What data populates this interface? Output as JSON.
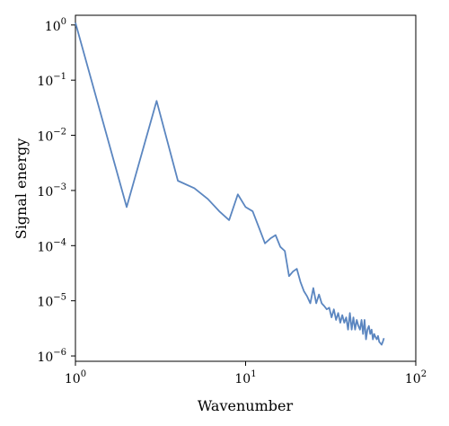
{
  "chart_data": {
    "type": "line",
    "xlabel": "Wavenumber",
    "ylabel": "Signal energy",
    "xscale": "log",
    "yscale": "log",
    "xlim": [
      1,
      100
    ],
    "ylim": [
      8e-07,
      1.5
    ],
    "x_ticks": [
      {
        "base": "10",
        "exp": "0",
        "value": 1
      },
      {
        "base": "10",
        "exp": "1",
        "value": 10
      },
      {
        "base": "10",
        "exp": "2",
        "value": 100
      }
    ],
    "y_ticks": [
      {
        "base": "10",
        "exp": "0",
        "value": 1
      },
      {
        "base": "10",
        "exp": "−1",
        "value": 0.1
      },
      {
        "base": "10",
        "exp": "−2",
        "value": 0.01
      },
      {
        "base": "10",
        "exp": "−3",
        "value": 0.001
      },
      {
        "base": "10",
        "exp": "−4",
        "value": 0.0001
      },
      {
        "base": "10",
        "exp": "−5",
        "value": 1e-05
      },
      {
        "base": "10",
        "exp": "−6",
        "value": 1e-06
      }
    ],
    "grid": false,
    "series": [
      {
        "color": "#5b86c0",
        "x": [
          1,
          2,
          3,
          4,
          5,
          6,
          7,
          8,
          9,
          10,
          11,
          12,
          13,
          14,
          15,
          16,
          17,
          18,
          19,
          20,
          21,
          22,
          23,
          24,
          25,
          26,
          27,
          28,
          29,
          30,
          31,
          32,
          33,
          34,
          35,
          36,
          37,
          38,
          39,
          40,
          41,
          42,
          43,
          44,
          45,
          46,
          47,
          48,
          49,
          50,
          51,
          52,
          53,
          54,
          55,
          56,
          57,
          58,
          59,
          60,
          61,
          62,
          63,
          64,
          65
        ],
        "y": [
          1.1,
          0.0005,
          0.042,
          0.0015,
          0.0011,
          0.0007,
          0.00042,
          0.00029,
          0.00085,
          0.0005,
          0.00042,
          0.00021,
          0.00011,
          0.000135,
          0.000155,
          9.5e-05,
          8e-05,
          2.8e-05,
          3.4e-05,
          3.8e-05,
          2.2e-05,
          1.5e-05,
          1.2e-05,
          9e-06,
          1.7e-05,
          9e-06,
          1.3e-05,
          9e-06,
          8e-06,
          7e-06,
          7.5e-06,
          5e-06,
          7e-06,
          4.5e-06,
          6e-06,
          4e-06,
          5.5e-06,
          4e-06,
          5e-06,
          3e-06,
          6e-06,
          3e-06,
          5e-06,
          3e-06,
          4.5e-06,
          3.5e-06,
          3e-06,
          4.5e-06,
          2.5e-06,
          4.5e-06,
          2e-06,
          3e-06,
          3.5e-06,
          2.5e-06,
          3e-06,
          2e-06,
          2.5e-06,
          2.2e-06,
          2e-06,
          2.3e-06,
          1.8e-06,
          1.7e-06,
          1.6e-06,
          1.8e-06,
          2.1e-06
        ]
      }
    ]
  }
}
